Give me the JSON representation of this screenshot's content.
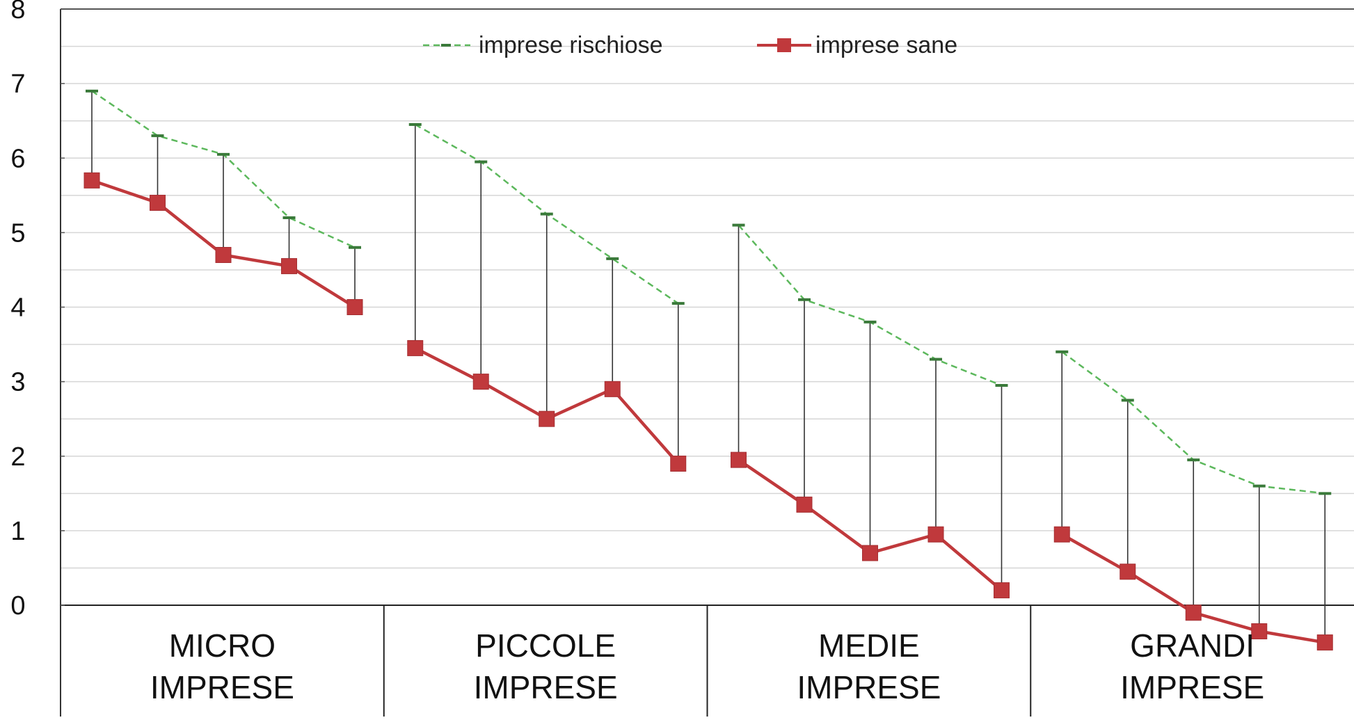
{
  "chart_data": {
    "type": "line",
    "title": "",
    "xlabel": "",
    "ylabel": "",
    "ylim": [
      0,
      8
    ],
    "yticks": [
      "0",
      "1",
      "2",
      "3",
      "4",
      "5",
      "6",
      "7",
      "8"
    ],
    "grid": true,
    "legend_position": "top",
    "groups": [
      {
        "label_line1": "MICRO",
        "label_line2": "IMPRESE"
      },
      {
        "label_line1": "PICCOLE",
        "label_line2": "IMPRESE"
      },
      {
        "label_line1": "MEDIE",
        "label_line2": "IMPRESE"
      },
      {
        "label_line1": "GRANDI",
        "label_line2": "IMPRESE"
      }
    ],
    "series": [
      {
        "name": "imprese rischiose",
        "color": "#5cb85c",
        "style": "dashed",
        "groups": [
          [
            6.9,
            6.3,
            6.05,
            5.2,
            4.8
          ],
          [
            6.45,
            5.95,
            5.25,
            4.65,
            4.05
          ],
          [
            5.1,
            4.1,
            3.8,
            3.3,
            2.95
          ],
          [
            3.4,
            2.75,
            1.95,
            1.6,
            1.5
          ]
        ]
      },
      {
        "name": "imprese sane",
        "color": "#c0393c",
        "style": "solid",
        "groups": [
          [
            5.7,
            5.4,
            4.7,
            4.55,
            4.0
          ],
          [
            3.45,
            3.0,
            2.5,
            2.9,
            1.9
          ],
          [
            1.95,
            1.35,
            0.7,
            0.95,
            0.2
          ],
          [
            0.95,
            0.45,
            -0.1,
            -0.35,
            -0.5
          ]
        ]
      }
    ]
  }
}
